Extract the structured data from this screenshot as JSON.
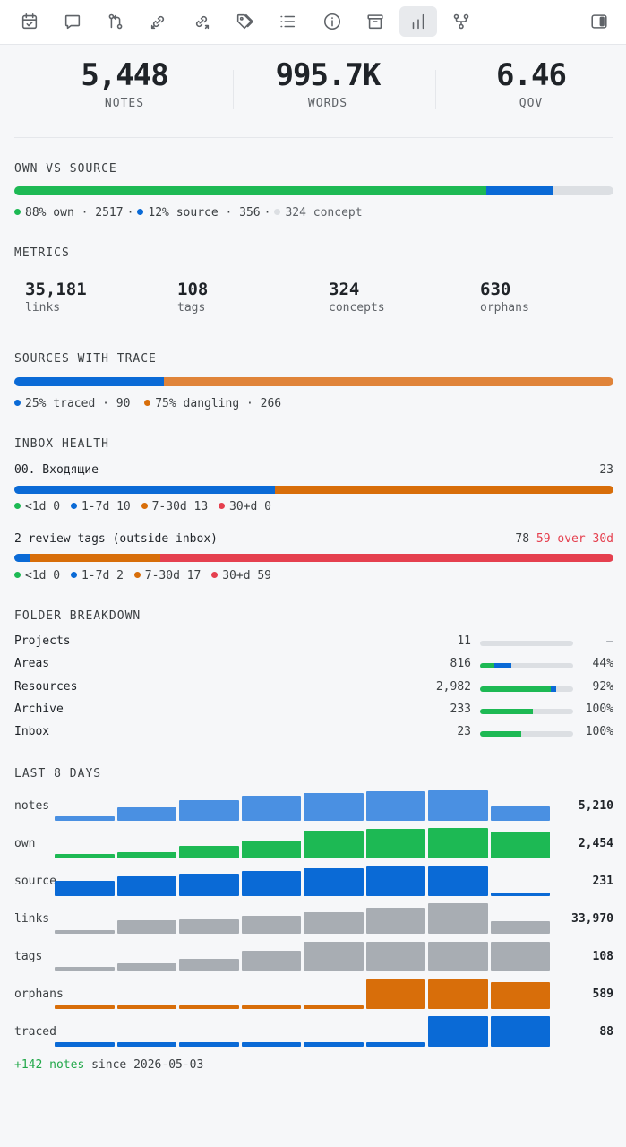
{
  "toolbar": {
    "icons": [
      "calendar-icon",
      "comment-icon",
      "git-compare-icon",
      "link-in-icon",
      "link-out-icon",
      "tag-icon",
      "list-icon",
      "info-icon",
      "archive-icon",
      "bar-chart-icon",
      "fork-icon",
      "sidebar-toggle-icon"
    ],
    "active": "bar-chart-icon"
  },
  "stats": [
    {
      "value": "5,448",
      "label": "NOTES"
    },
    {
      "value": "995.7K",
      "label": "WORDS"
    },
    {
      "value": "6.46",
      "label": "QOV"
    }
  ],
  "own_vs_source": {
    "title": "OWN VS SOURCE",
    "own_pct": 0.787,
    "source_pct": 0.112,
    "legend": {
      "own": "88% own · 2517",
      "source": "12% source · 356",
      "concept": "324 concept"
    }
  },
  "metrics": {
    "title": "METRICS",
    "items": [
      {
        "value": "35,181",
        "label": "links"
      },
      {
        "value": "108",
        "label": "tags"
      },
      {
        "value": "324",
        "label": "concepts"
      },
      {
        "value": "630",
        "label": "orphans"
      }
    ]
  },
  "sources_trace": {
    "title": "SOURCES WITH TRACE",
    "traced_pct": 0.25,
    "dangling_pct": 0.75,
    "legend": {
      "traced": "25% traced · 90",
      "dangling": "75% dangling · 266"
    }
  },
  "inbox_health": {
    "title": "INBOX HEALTH",
    "inbox": {
      "name": "00. Входящие",
      "count": "23",
      "segments": [
        0,
        10,
        13,
        0
      ],
      "legend": [
        "<1d 0",
        "1-7d 10",
        "7-30d 13",
        "30+d 0"
      ]
    },
    "review": {
      "name": "2 review tags (outside inbox)",
      "count": "78",
      "over": "59 over 30d",
      "segments": [
        0,
        2,
        17,
        59
      ],
      "legend": [
        "<1d 0",
        "1-7d 2",
        "7-30d 17",
        "30+d 59"
      ]
    }
  },
  "folders": {
    "title": "FOLDER BREAKDOWN",
    "rows": [
      {
        "name": "Projects",
        "count": "11",
        "green": 0,
        "blue": 0,
        "pct": "—"
      },
      {
        "name": "Areas",
        "count": "816",
        "green": 0.15,
        "blue": 0.19,
        "pct": "44%"
      },
      {
        "name": "Resources",
        "count": "2,982",
        "green": 0.76,
        "blue": 0.06,
        "pct": "92%"
      },
      {
        "name": "Archive",
        "count": "233",
        "green": 0.57,
        "blue": 0,
        "pct": "100%"
      },
      {
        "name": "Inbox",
        "count": "23",
        "green": 0.44,
        "blue": 0,
        "pct": "100%"
      }
    ]
  },
  "last_days": {
    "title": "LAST 8 DAYS",
    "rows": [
      {
        "label": "notes",
        "total": "5,210",
        "color": "#4a90e2",
        "values": [
          0.14,
          0.45,
          0.68,
          0.83,
          0.92,
          0.97,
          1.0,
          0.48
        ]
      },
      {
        "label": "own",
        "total": "2,454",
        "color": "#1db954",
        "values": [
          0.16,
          0.2,
          0.4,
          0.58,
          0.92,
          0.97,
          1.0,
          0.88
        ]
      },
      {
        "label": "source",
        "total": "231",
        "color": "#0a6ad6",
        "values": [
          0.5,
          0.65,
          0.74,
          0.83,
          0.92,
          1.0,
          1.0,
          0.12
        ]
      },
      {
        "label": "links",
        "total": "33,970",
        "color": "#a8adb3",
        "values": [
          0.12,
          0.44,
          0.47,
          0.58,
          0.7,
          0.85,
          1.0,
          0.4
        ]
      },
      {
        "label": "tags",
        "total": "108",
        "color": "#a8adb3",
        "values": [
          0.14,
          0.27,
          0.4,
          0.69,
          0.97,
          0.97,
          0.97,
          0.97
        ]
      },
      {
        "label": "orphans",
        "total": "589",
        "color": "#d86e0a",
        "values": [
          0.12,
          0.12,
          0.12,
          0.12,
          0.12,
          0.97,
          0.97,
          0.88
        ]
      },
      {
        "label": "traced",
        "total": "88",
        "color": "#0a6ad6",
        "values": [
          0.14,
          0.14,
          0.14,
          0.14,
          0.14,
          0.14,
          1.0,
          1.0
        ]
      }
    ]
  },
  "footer": {
    "delta": "+142 notes",
    "since": "since 2026-05-03"
  },
  "colors": {
    "green": "#1db954",
    "blue": "#0a6ad6",
    "gray": "#dcdfe3",
    "orange": "#d86e0a",
    "red": "#e5404f"
  }
}
